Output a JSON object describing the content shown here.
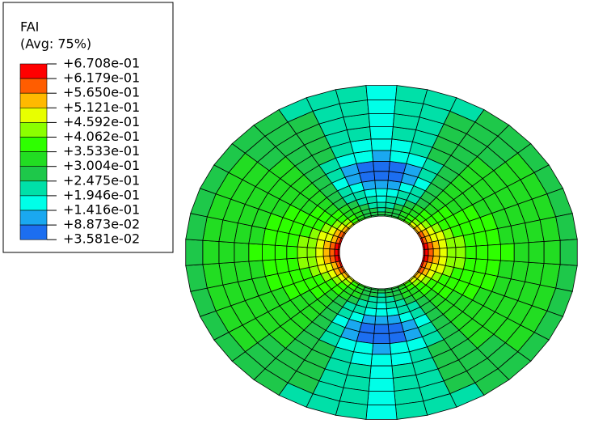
{
  "legend": {
    "title": "FAI",
    "subtitle": "(Avg: 75%)",
    "labels": [
      "+6.708e-01",
      "+6.179e-01",
      "+5.650e-01",
      "+5.121e-01",
      "+4.592e-01",
      "+4.062e-01",
      "+3.533e-01",
      "+3.004e-01",
      "+2.475e-01",
      "+1.946e-01",
      "+1.416e-01",
      "+8.873e-02",
      "+3.581e-02"
    ],
    "colors": [
      "#ff0000",
      "#ff5d00",
      "#ffb900",
      "#e8ff00",
      "#8bff00",
      "#2eff00",
      "#22dd22",
      "#1ec84a",
      "#00e0a8",
      "#00ffe8",
      "#1aa8f0",
      "#1c6ef0",
      "#0000ff"
    ]
  }
}
